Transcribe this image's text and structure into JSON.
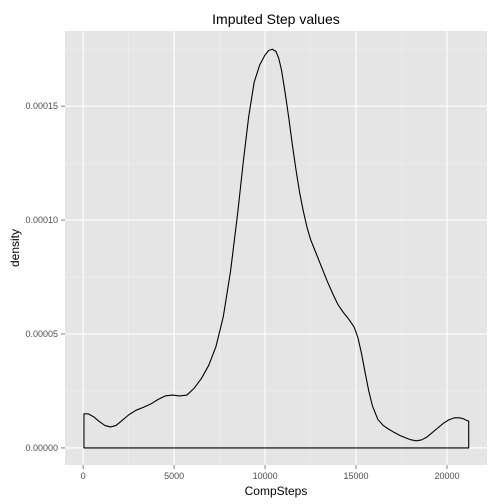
{
  "chart_data": {
    "type": "area",
    "title": "Imputed Step values",
    "xlabel": "CompSteps",
    "ylabel": "density",
    "xlim": [
      -1000,
      22200
    ],
    "ylim": [
      -7.5e-06,
      0.000183
    ],
    "x_ticks": [
      0,
      5000,
      10000,
      15000,
      20000
    ],
    "x_tick_labels": [
      "0",
      "5000",
      "10000",
      "15000",
      "20000"
    ],
    "x_minor_ticks": [
      2500,
      7500,
      12500,
      17500
    ],
    "y_ticks": [
      0,
      5e-05,
      0.0001,
      0.00015
    ],
    "y_tick_labels": [
      "0.00000",
      "0.00005",
      "0.00010",
      "0.00015"
    ],
    "y_minor_ticks": [
      2.5e-05,
      7.5e-05,
      0.000125,
      0.000175
    ],
    "grid": true,
    "legend": "none",
    "background_color": "#e5e5e5",
    "grid_major_color": "#ffffff",
    "grid_minor_color": "#f2f2f2",
    "line_color": "#000000",
    "series": [
      {
        "x": [
          41,
          300,
          600,
          900,
          1200,
          1500,
          1800,
          2100,
          2500,
          2900,
          3300,
          3700,
          4100,
          4500,
          4900,
          5300,
          5700,
          6100,
          6500,
          6900,
          7300,
          7700,
          8100,
          8500,
          8800,
          9100,
          9400,
          9700,
          10000,
          10200,
          10400,
          10600,
          10750,
          10900,
          11100,
          11300,
          11500,
          11700,
          11900,
          12100,
          12300,
          12500,
          12800,
          13100,
          13400,
          13700,
          14000,
          14300,
          14600,
          14900,
          15100,
          15300,
          15500,
          15700,
          15900,
          16200,
          16500,
          16800,
          17100,
          17400,
          17700,
          18000,
          18300,
          18600,
          18900,
          19200,
          19500,
          19800,
          20100,
          20400,
          20700,
          20900,
          21100,
          21194
        ],
        "y": [
          1.5e-05,
          1.49e-05,
          1.35e-05,
          1.15e-05,
          9.8e-06,
          9.2e-06,
          9.8e-06,
          1.18e-05,
          1.45e-05,
          1.65e-05,
          1.78e-05,
          1.92e-05,
          2.12e-05,
          2.28e-05,
          2.32e-05,
          2.28e-05,
          2.32e-05,
          2.62e-05,
          3.05e-05,
          3.62e-05,
          4.45e-05,
          5.75e-05,
          7.75e-05,
          0.0001035,
          0.0001255,
          0.0001455,
          0.0001605,
          0.000168,
          0.0001725,
          0.0001745,
          0.000175,
          0.000174,
          0.000171,
          0.000166,
          0.000156,
          0.000145,
          0.000133,
          0.000122,
          0.000112,
          0.000104,
          9.7e-05,
          9.15e-05,
          8.55e-05,
          7.95e-05,
          7.35e-05,
          6.8e-05,
          6.3e-05,
          5.95e-05,
          5.65e-05,
          5.3e-05,
          4.85e-05,
          4.15e-05,
          3.3e-05,
          2.5e-05,
          1.85e-05,
          1.25e-05,
          9.8e-06,
          8.2e-06,
          6.8e-06,
          5.5e-06,
          4.5e-06,
          3.6e-06,
          3.1e-06,
          3.5e-06,
          4.8e-06,
          6.8e-06,
          8.8e-06,
          1.08e-05,
          1.23e-05,
          1.32e-05,
          1.32e-05,
          1.28e-05,
          1.2e-05,
          1.18e-05
        ]
      }
    ]
  }
}
